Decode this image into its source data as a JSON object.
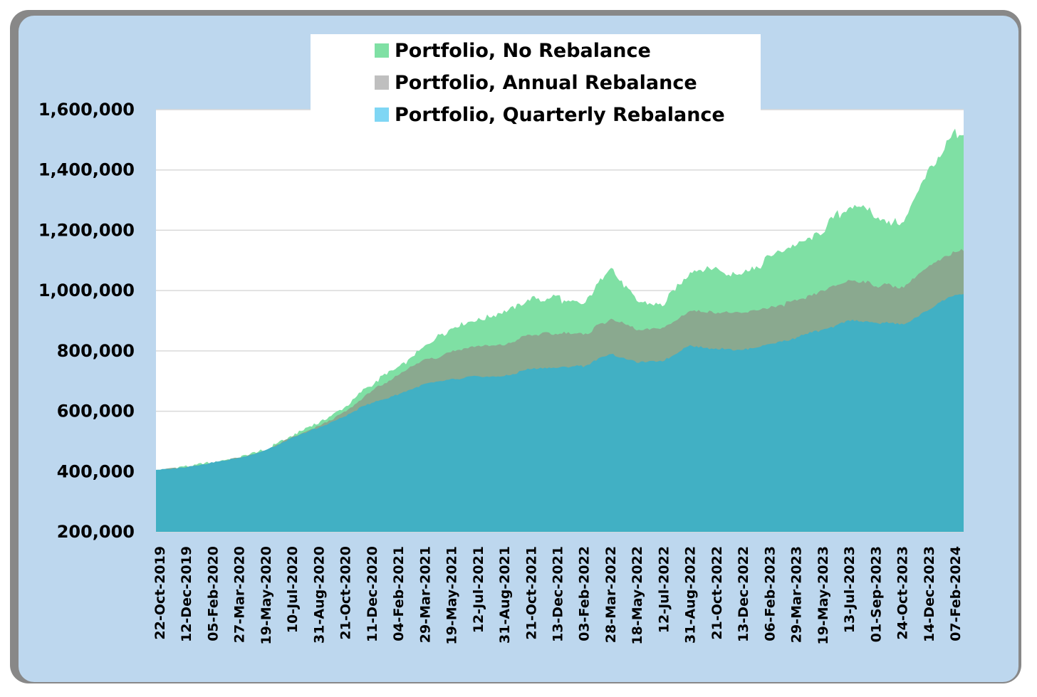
{
  "colors": {
    "panel_bg": "#bdd7ee",
    "plot_bg": "#ffffff",
    "grid": "#d9d9d9",
    "no_rebalance": "#7fe0a4",
    "annual_rebalance": "#8aa98f",
    "quarterly_rebalance": "#41b0c4",
    "legend_annual_swatch": "#bfbfbf",
    "legend_quarterly_swatch": "#7fd6f4"
  },
  "chart_data": {
    "type": "area",
    "title": "",
    "xlabel": "",
    "ylabel": "",
    "ylim": [
      200000,
      1600000
    ],
    "yticks": [
      200000,
      400000,
      600000,
      800000,
      1000000,
      1200000,
      1400000,
      1600000
    ],
    "ytick_labels": [
      "200,000",
      "400,000",
      "600,000",
      "800,000",
      "1,000,000",
      "1,200,000",
      "1,400,000",
      "1,600,000"
    ],
    "grid": true,
    "legend_position": "top-center",
    "categories": [
      "22-Oct-2019",
      "12-Dec-2019",
      "05-Feb-2020",
      "27-Mar-2020",
      "19-May-2020",
      "10-Jul-2020",
      "31-Aug-2020",
      "21-Oct-2020",
      "11-Dec-2020",
      "04-Feb-2021",
      "29-Mar-2021",
      "19-May-2021",
      "12-Jul-2021",
      "31-Aug-2021",
      "21-Oct-2021",
      "13-Dec-2021",
      "03-Feb-2022",
      "28-Mar-2022",
      "18-May-2022",
      "12-Jul-2022",
      "31-Aug-2022",
      "21-Oct-2022",
      "13-Dec-2022",
      "06-Feb-2023",
      "29-Mar-2023",
      "19-May-2023",
      "13-Jul-2023",
      "01-Sep-2023",
      "24-Oct-2023",
      "14-Dec-2023",
      "07-Feb-2024"
    ],
    "series": [
      {
        "name": "Portfolio, No Rebalance",
        "values": [
          405000,
          415000,
          430000,
          445000,
          470000,
          520000,
          560000,
          610000,
          690000,
          750000,
          810000,
          880000,
          910000,
          930000,
          970000,
          975000,
          955000,
          1080000,
          970000,
          960000,
          1060000,
          1070000,
          1050000,
          1110000,
          1150000,
          1200000,
          1290000,
          1250000,
          1210000,
          1400000,
          1515000
        ]
      },
      {
        "name": "Portfolio, Annual Rebalance",
        "values": [
          405000,
          415000,
          430000,
          445000,
          470000,
          515000,
          550000,
          595000,
          665000,
          720000,
          770000,
          795000,
          815000,
          820000,
          855000,
          860000,
          855000,
          905000,
          870000,
          875000,
          930000,
          925000,
          925000,
          945000,
          965000,
          995000,
          1035000,
          1020000,
          1010000,
          1080000,
          1135000
        ]
      },
      {
        "name": "Portfolio, Quarterly Rebalance",
        "values": [
          405000,
          415000,
          430000,
          445000,
          470000,
          510000,
          545000,
          585000,
          630000,
          655000,
          690000,
          705000,
          715000,
          715000,
          740000,
          745000,
          750000,
          790000,
          760000,
          765000,
          820000,
          805000,
          805000,
          820000,
          845000,
          870000,
          900000,
          895000,
          885000,
          940000,
          985000
        ]
      }
    ]
  }
}
